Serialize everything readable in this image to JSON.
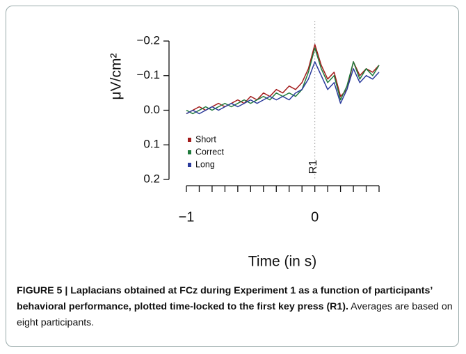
{
  "chart_data": {
    "type": "line",
    "ylabel": "μV/cm²",
    "xlabel": "Time (in s)",
    "x": [
      -1.0,
      -0.95,
      -0.9,
      -0.85,
      -0.8,
      -0.75,
      -0.7,
      -0.65,
      -0.6,
      -0.55,
      -0.5,
      -0.45,
      -0.4,
      -0.35,
      -0.3,
      -0.25,
      -0.2,
      -0.15,
      -0.1,
      -0.05,
      0.0,
      0.05,
      0.1,
      0.15,
      0.2,
      0.25,
      0.3,
      0.35,
      0.4,
      0.45,
      0.5
    ],
    "series": [
      {
        "name": "Short",
        "color": "#a31b1b",
        "values": [
          0.01,
          0.0,
          -0.01,
          0.0,
          -0.01,
          -0.02,
          -0.01,
          -0.02,
          -0.03,
          -0.02,
          -0.04,
          -0.03,
          -0.05,
          -0.04,
          -0.06,
          -0.05,
          -0.07,
          -0.06,
          -0.08,
          -0.12,
          -0.19,
          -0.13,
          -0.09,
          -0.11,
          -0.04,
          -0.06,
          -0.14,
          -0.1,
          -0.12,
          -0.11,
          -0.13
        ]
      },
      {
        "name": "Correct",
        "color": "#1f7a3c",
        "values": [
          0.0,
          0.01,
          0.0,
          -0.01,
          0.0,
          -0.01,
          -0.02,
          -0.01,
          -0.02,
          -0.03,
          -0.02,
          -0.03,
          -0.04,
          -0.03,
          -0.05,
          -0.04,
          -0.05,
          -0.04,
          -0.06,
          -0.11,
          -0.18,
          -0.12,
          -0.08,
          -0.1,
          -0.03,
          -0.07,
          -0.14,
          -0.09,
          -0.12,
          -0.1,
          -0.13
        ]
      },
      {
        "name": "Long",
        "color": "#2b3b9c",
        "values": [
          0.01,
          0.0,
          0.01,
          0.0,
          -0.01,
          0.0,
          -0.01,
          -0.02,
          -0.01,
          -0.02,
          -0.03,
          -0.02,
          -0.03,
          -0.04,
          -0.03,
          -0.04,
          -0.03,
          -0.05,
          -0.06,
          -0.09,
          -0.14,
          -0.1,
          -0.06,
          -0.08,
          -0.02,
          -0.06,
          -0.12,
          -0.08,
          -0.1,
          -0.09,
          -0.11
        ]
      }
    ],
    "ylim": [
      0.2,
      -0.2
    ],
    "yticks": [
      {
        "value": -0.2,
        "label": "−0.2"
      },
      {
        "value": -0.1,
        "label": "−0.1"
      },
      {
        "value": 0,
        "label": "0.0"
      },
      0.1,
      0.2
    ],
    "xlim": [
      -1,
      0.5
    ],
    "xticks": [
      {
        "value": -1,
        "label": "−1"
      },
      0
    ],
    "xminorticks": [
      -0.9,
      -0.8,
      -0.7,
      -0.6,
      -0.5,
      -0.4,
      -0.3,
      -0.2,
      -0.1,
      0.1,
      0.2,
      0.3,
      0.4,
      0.5
    ],
    "annotations": [
      {
        "x": 0,
        "text": "R1"
      }
    ],
    "legend": "lower left"
  },
  "caption": {
    "label": "FIGURE 5 | Laplacians obtained at FCz during Experiment 1 as a function of participants’ behavioral performance, plotted time-locked to the first key press (R1).",
    "text": "Averages are based on eight participants."
  }
}
